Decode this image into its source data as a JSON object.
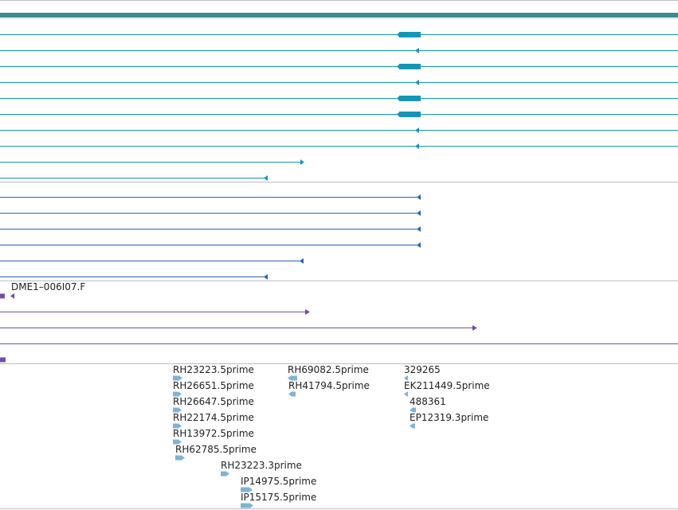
{
  "colors": {
    "background": "#ffffff",
    "separator": "#bdbdbd",
    "scaffold": "#3a8c8e",
    "transcript": "#1596b6",
    "transcript_cds": "#1596b6",
    "blue_feature": "#2a63b8",
    "purple_feature": "#6f4ea5",
    "est": "#7fb3d6"
  },
  "tracks": {
    "scaffold": {
      "name": "scaffold-bar"
    },
    "transcripts": {
      "rows": [
        {
          "extends_right": true,
          "utr_end": 528,
          "cds_start": 498,
          "cds_end": 528
        },
        {
          "extends_right": true,
          "utr_end": 526
        },
        {
          "extends_right": true,
          "utr_end": 528,
          "cds_start": 498,
          "cds_end": 528
        },
        {
          "extends_right": true,
          "utr_end": 526
        },
        {
          "extends_right": true,
          "utr_end": 528,
          "cds_start": 498,
          "cds_end": 528
        },
        {
          "extends_right": true,
          "utr_end": 528,
          "cds_start": 498,
          "cds_end": 528
        },
        {
          "extends_right": true,
          "utr_end": 526
        },
        {
          "extends_right": true,
          "utr_end": 526
        },
        {
          "extends_right": false,
          "end": 381,
          "arrow": "right"
        },
        {
          "extends_right": false,
          "end": 336,
          "arrow": "left"
        }
      ]
    },
    "blue_features": {
      "rows": [
        {
          "end": 528
        },
        {
          "end": 528
        },
        {
          "end": 528
        },
        {
          "end": 528
        },
        {
          "end": 381
        },
        {
          "end": 336
        }
      ]
    },
    "purple_features": {
      "label": "DME1–006I07.F",
      "rows": [
        {
          "type": "stub",
          "end": 6
        },
        {
          "type": "line",
          "end": 388
        },
        {
          "type": "line",
          "end": 598
        },
        {
          "type": "line",
          "end": 851
        },
        {
          "type": "stub",
          "end": 7
        }
      ]
    },
    "est": {
      "features": [
        {
          "label": "RH23223.5prime",
          "dir": "right"
        },
        {
          "label": "RH26651.5prime",
          "dir": "right"
        },
        {
          "label": "RH26647.5prime",
          "dir": "right"
        },
        {
          "label": "RH22174.5prime",
          "dir": "right"
        },
        {
          "label": "RH13972.5prime",
          "dir": "right"
        },
        {
          "label": "RH62785.5prime",
          "dir": "right"
        },
        {
          "label": "RH23223.3prime",
          "dir": "right"
        },
        {
          "label": "IP14975.5prime",
          "dir": "right"
        },
        {
          "label": "IP15175.5prime",
          "dir": "right"
        },
        {
          "label": "RH69082.5prime",
          "dir": "left"
        },
        {
          "label": "RH41794.5prime",
          "dir": "left"
        },
        {
          "label": "329265",
          "dir": "left"
        },
        {
          "label": "EK211449.5prime",
          "dir": "left"
        },
        {
          "label": "488361",
          "dir": "left"
        },
        {
          "label": "EP12319.3prime",
          "dir": "left"
        }
      ]
    }
  }
}
